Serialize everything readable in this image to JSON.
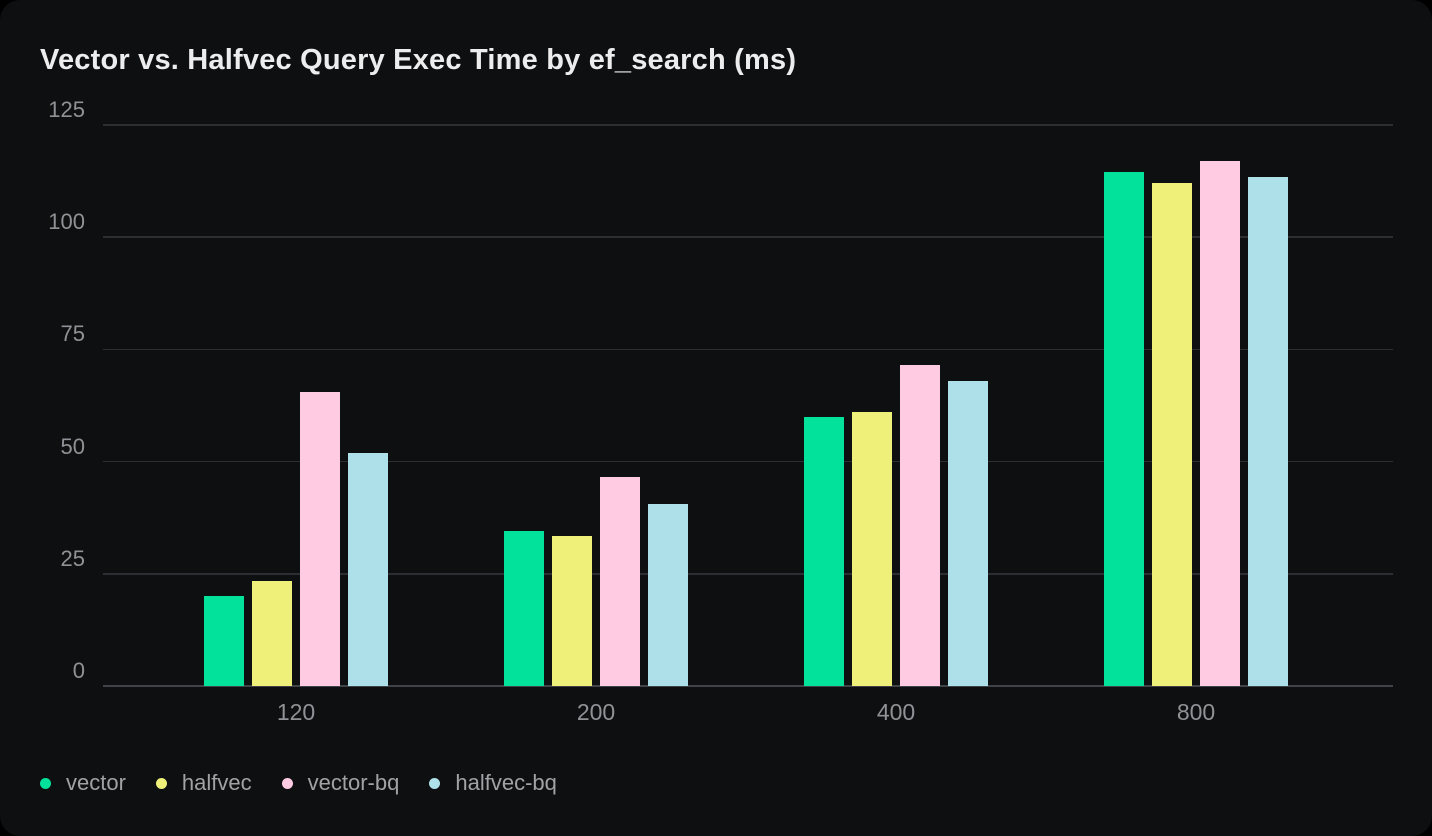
{
  "card": {
    "title": "Vector vs. Halfvec Query Exec Time by ef_search (ms)"
  },
  "chart_data": {
    "type": "bar",
    "title": "Vector vs. Halfvec Query Exec Time by ef_search (ms)",
    "categories": [
      "120",
      "200",
      "400",
      "800"
    ],
    "series": [
      {
        "name": "vector",
        "color": "#03e29b",
        "values": [
          20,
          34.5,
          60,
          114.5
        ]
      },
      {
        "name": "halfvec",
        "color": "#eef07a",
        "values": [
          23.5,
          33.5,
          61,
          112
        ]
      },
      {
        "name": "vector-bq",
        "color": "#ffcbe2",
        "values": [
          65.5,
          46.5,
          71.5,
          117
        ]
      },
      {
        "name": "halfvec-bq",
        "color": "#aee0ea",
        "values": [
          52,
          40.5,
          68,
          113.5
        ]
      }
    ],
    "xlabel": "",
    "ylabel": "",
    "ylim": [
      0,
      125
    ],
    "yticks": [
      0,
      25,
      50,
      75,
      100,
      125
    ],
    "grid": "horizontal",
    "legend_position": "bottom-left",
    "legend": [
      "vector",
      "halfvec",
      "vector-bq",
      "halfvec-bq"
    ]
  },
  "theme": {
    "page_background": "#000000",
    "card_background": "#0e0f10",
    "title_color": "#ededee",
    "axis_label_color": "#8f9296",
    "legend_label_color": "#a0a2a6",
    "gridline_color": "#2b2e33",
    "baseline_color": "#3f4349"
  }
}
